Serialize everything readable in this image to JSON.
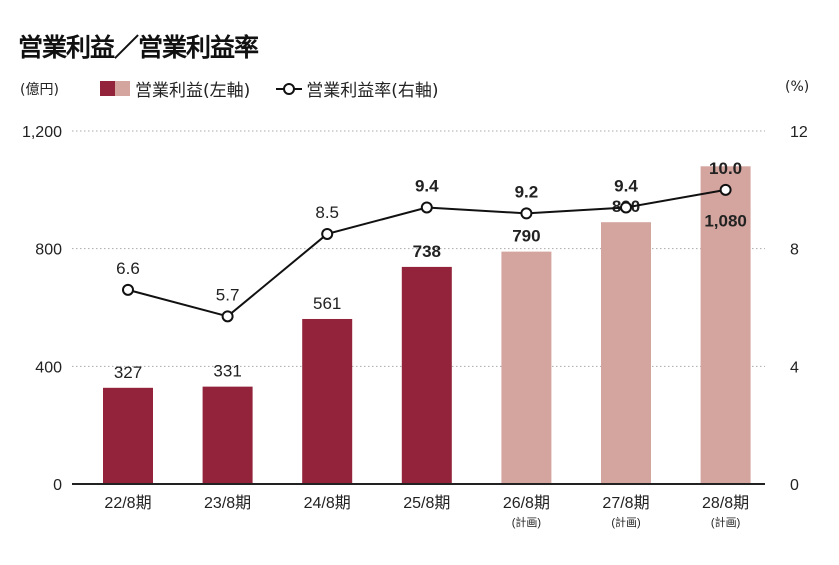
{
  "chart_data": {
    "type": "bar+line",
    "title": "営業利益／営業利益率",
    "left_unit": "(億円)",
    "right_unit": "(%)",
    "categories": [
      "22/8期",
      "23/8期",
      "24/8期",
      "25/8期",
      "26/8期",
      "27/8期",
      "28/8期"
    ],
    "category_notes": [
      "",
      "",
      "",
      "",
      "(計画)",
      "(計画)",
      "(計画)"
    ],
    "series": [
      {
        "name": "営業利益(左軸)",
        "type": "bar",
        "axis": "left",
        "values": [
          327,
          331,
          561,
          738,
          790,
          890,
          1080
        ],
        "labels": [
          "327",
          "331",
          "561",
          "738",
          "790",
          "890",
          "1,080"
        ]
      },
      {
        "name": "営業利益率(右軸)",
        "type": "line",
        "axis": "right",
        "values": [
          6.6,
          5.7,
          8.5,
          9.4,
          9.2,
          9.4,
          10.0
        ],
        "labels": [
          "6.6",
          "5.7",
          "8.5",
          "9.4",
          "9.2",
          "9.4",
          "10.0"
        ]
      }
    ],
    "left_axis": {
      "range": [
        0,
        1200
      ],
      "ticks": [
        "0",
        "400",
        "800",
        "1,200"
      ]
    },
    "right_axis": {
      "range": [
        0,
        12
      ],
      "ticks": [
        "0",
        "4",
        "8",
        "12"
      ]
    },
    "grid": true,
    "legend_position": "top",
    "colors": {
      "actual": "#92233a",
      "plan": "#d4a59f",
      "line": "#111111"
    }
  }
}
